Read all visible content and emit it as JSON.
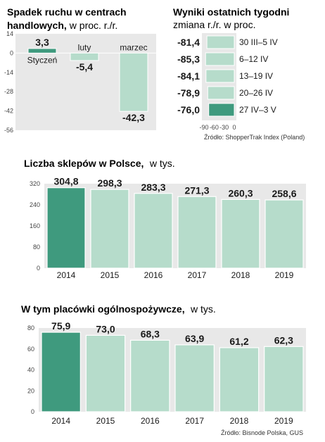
{
  "chart_data": [
    {
      "type": "bar",
      "title": "Spadek ruchu w centrach handlowych,",
      "subtitle": "w proc. r./r.",
      "categories": [
        "Styczeń",
        "luty",
        "marzec"
      ],
      "values": [
        3.3,
        -5.4,
        -42.3
      ],
      "value_labels": [
        "3,3",
        "-5,4",
        "-42,3"
      ],
      "ylim": [
        -56,
        14
      ],
      "yticks": [
        14,
        0,
        -14,
        -28,
        -42,
        -56
      ]
    },
    {
      "type": "bar",
      "orientation": "horizontal",
      "title": "Wyniki ostatnich tygodni",
      "subtitle": "zmiana r./r. w proc.",
      "categories": [
        "30 III–5 IV",
        "6–12 IV",
        "13–19 IV",
        "20–26 IV",
        "27 IV–3 V"
      ],
      "values": [
        -81.4,
        -85.3,
        -84.1,
        -78.9,
        -76.0
      ],
      "value_labels": [
        "-81,4",
        "-85,3",
        "-84,1",
        "-78,9",
        "-76,0"
      ],
      "xticks": [
        "-90",
        "-60",
        "-30",
        "0"
      ],
      "source": "Źródło: ShopperTrak Index (Poland)"
    },
    {
      "type": "bar",
      "title": "Liczba sklepów w Polsce,",
      "subtitle": "w tys.",
      "categories": [
        "2014",
        "2015",
        "2016",
        "2017",
        "2018",
        "2019"
      ],
      "values": [
        304.8,
        298.3,
        283.3,
        271.3,
        260.3,
        258.6
      ],
      "value_labels": [
        "304,8",
        "298,3",
        "283,3",
        "271,3",
        "260,3",
        "258,6"
      ],
      "ylim": [
        0,
        320
      ],
      "yticks": [
        0,
        80,
        160,
        240,
        320
      ]
    },
    {
      "type": "bar",
      "title": "W tym placówki ogólnospożywcze,",
      "subtitle": "w tys.",
      "categories": [
        "2014",
        "2015",
        "2016",
        "2017",
        "2018",
        "2019"
      ],
      "values": [
        75.9,
        73.0,
        68.3,
        63.9,
        61.2,
        62.3
      ],
      "value_labels": [
        "75,9",
        "73,0",
        "68,3",
        "63,9",
        "61,2",
        "62,3"
      ],
      "ylim": [
        0,
        80
      ],
      "yticks": [
        0,
        20,
        40,
        60,
        80
      ],
      "source": "Źródło: Bisnode Polska, GUS"
    }
  ],
  "colors": {
    "dark_green": "#3f9a7e",
    "light_green": "#b6dccb",
    "bar_stroke": "#ffffff",
    "panel_bg": "#e8e8e8"
  }
}
